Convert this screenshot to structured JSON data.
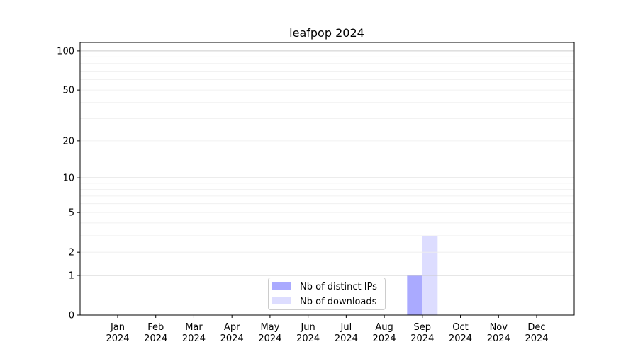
{
  "chart_data": {
    "type": "bar",
    "title": "leafpop 2024",
    "xlabel": "",
    "ylabel": "",
    "yscale": "symlog",
    "ylim": [
      0,
      116
    ],
    "grid": true,
    "legend_placement": "lower center",
    "categories": [
      "Jan\n2024",
      "Feb\n2024",
      "Mar\n2024",
      "Apr\n2024",
      "May\n2024",
      "Jun\n2024",
      "Jul\n2024",
      "Aug\n2024",
      "Sep\n2024",
      "Oct\n2024",
      "Nov\n2024",
      "Dec\n2024"
    ],
    "yticks": [
      0,
      1,
      2,
      5,
      10,
      20,
      50,
      100
    ],
    "series": [
      {
        "name": "Nb of distinct IPs",
        "color": "#aaaaff",
        "values": [
          0,
          0,
          0,
          0,
          0,
          0,
          0,
          0,
          1,
          0,
          0,
          0
        ]
      },
      {
        "name": "Nb of downloads",
        "color": "#ddddff",
        "values": [
          0,
          0,
          0,
          0,
          0,
          0,
          0,
          0,
          3,
          0,
          0,
          0
        ]
      }
    ]
  }
}
